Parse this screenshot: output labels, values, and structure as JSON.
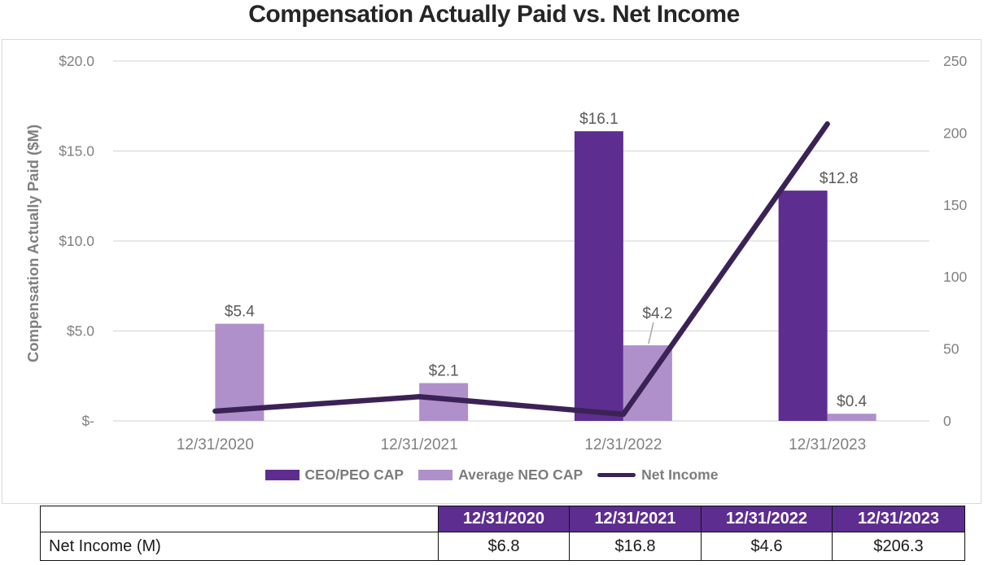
{
  "title": "Compensation Actually Paid vs. Net Income",
  "chart_data": {
    "type": "combo-bar-line",
    "categories": [
      "12/31/2020",
      "12/31/2021",
      "12/31/2022",
      "12/31/2023"
    ],
    "series": [
      {
        "name": "CEO/PEO CAP",
        "type": "bar",
        "axis": "left",
        "color": "#5e2d90",
        "values": [
          null,
          null,
          16.1,
          12.8
        ],
        "labels": [
          "",
          "",
          "$16.1",
          "$12.8"
        ],
        "label_offsets": [
          [
            0,
            0
          ],
          [
            0,
            0
          ],
          [
            0,
            0
          ],
          [
            44,
            0
          ]
        ],
        "callouts": [
          false,
          false,
          false,
          false
        ]
      },
      {
        "name": "Average NEO CAP",
        "type": "bar",
        "axis": "left",
        "color": "#af90cb",
        "values": [
          5.4,
          2.1,
          4.2,
          0.4
        ],
        "labels": [
          "$5.4",
          "$2.1",
          "$4.2",
          "$0.4"
        ],
        "label_offsets": [
          [
            0,
            0
          ],
          [
            0,
            0
          ],
          [
            12,
            -24
          ],
          [
            0,
            0
          ]
        ],
        "callouts": [
          false,
          false,
          true,
          false
        ]
      },
      {
        "name": "Net Income",
        "type": "line",
        "axis": "right",
        "color": "#3b2256",
        "values": [
          6.8,
          16.8,
          4.6,
          206.3
        ]
      }
    ],
    "left_axis": {
      "title": "Compensation Actually Paid ($M)",
      "min": 0,
      "max": 20,
      "tick_values": [
        0,
        5,
        10,
        15,
        20
      ],
      "tick_labels": [
        "$-",
        "$5.0",
        "$10.0",
        "$15.0",
        "$20.0"
      ]
    },
    "right_axis": {
      "min": 0,
      "max": 250,
      "tick_values": [
        0,
        50,
        100,
        150,
        200,
        250
      ],
      "tick_labels": [
        "0",
        "50",
        "100",
        "150",
        "200",
        "250"
      ]
    },
    "gridlines": true,
    "legend_position": "bottom"
  },
  "table": {
    "corner_label": "",
    "columns": [
      "12/31/2020",
      "12/31/2021",
      "12/31/2022",
      "12/31/2023"
    ],
    "row_label": "Net Income (M)",
    "values": [
      "$6.8",
      "$16.8",
      "$4.6",
      "$206.3"
    ]
  },
  "colors": {
    "ceo_bar": "#5e2d90",
    "neo_bar": "#af90cb",
    "net_income_line": "#3b2256",
    "table_header_bg": "#5e2d90",
    "gridline": "#d9d9d9",
    "tick_text": "#808080",
    "data_label_text": "#595959",
    "title_text": "#262626"
  }
}
